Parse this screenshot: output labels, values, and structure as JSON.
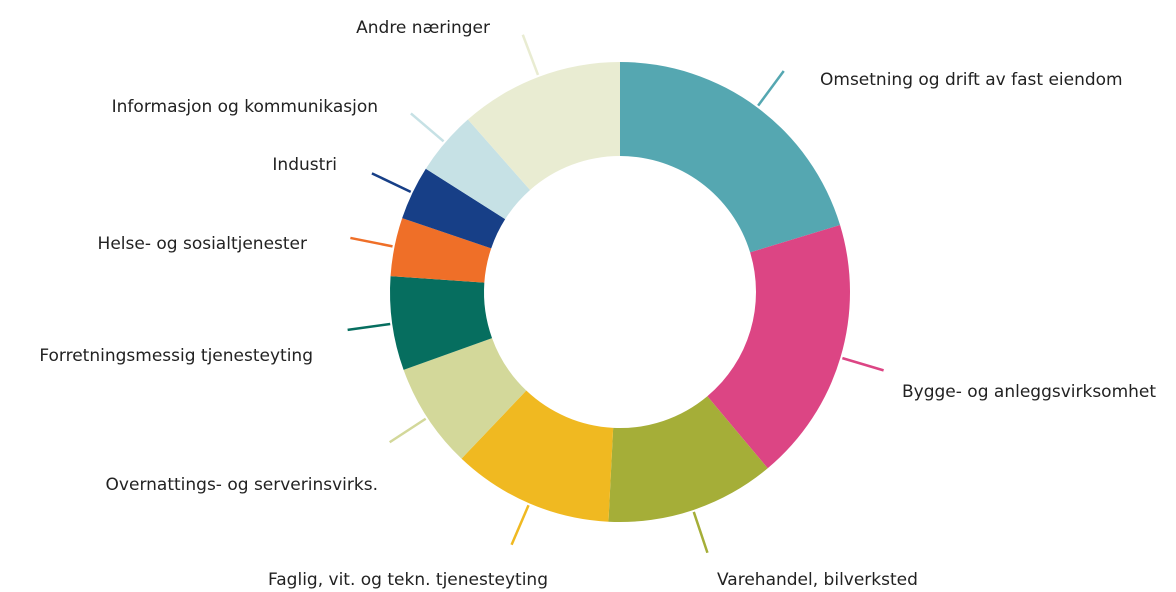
{
  "chart_data": {
    "type": "donut",
    "categories": [
      "Omsetning og drift av fast eiendom",
      "Bygge- og anleggsvirksomhet",
      "Varehandel, bilverksted",
      "Faglig, vit. og tekn. tjenesteyting",
      "Overnattings- og serverinsvirks.",
      "Forretningsmessig tjenesteyting",
      "Helse- og sosialtjenester",
      "Industri",
      "Informasjon og kommunikasjon",
      "Andre næringer"
    ],
    "values": [
      20.3,
      18.6,
      11.9,
      11.3,
      7.4,
      6.6,
      4.1,
      3.8,
      4.5,
      11.5
    ],
    "colors": [
      "#55a7b1",
      "#dc4584",
      "#a5ae38",
      "#f0b921",
      "#d3d89a",
      "#066e5f",
      "#ef6f28",
      "#173f87",
      "#c6e1e5",
      "#e9ecd2"
    ]
  }
}
